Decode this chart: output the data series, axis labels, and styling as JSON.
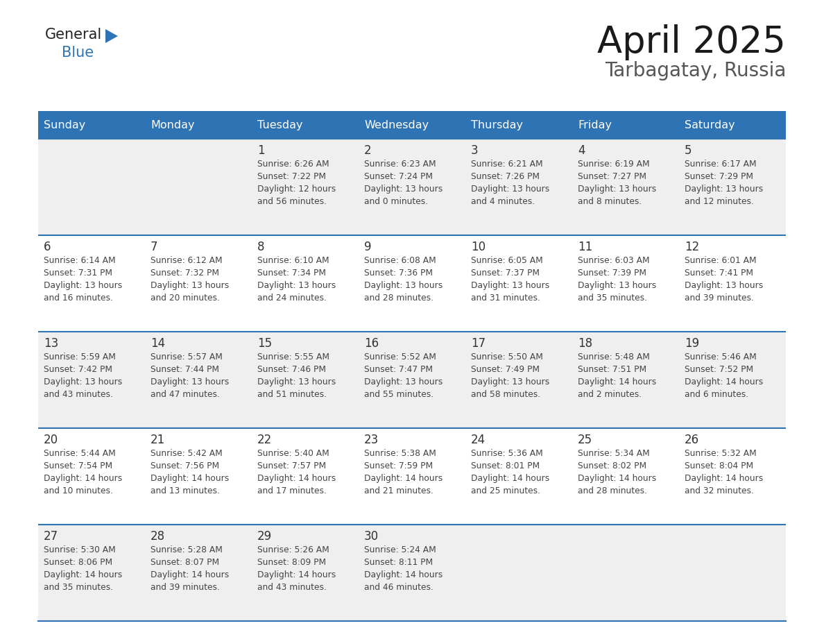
{
  "title": "April 2025",
  "subtitle": "Tarbagatay, Russia",
  "days_of_week": [
    "Sunday",
    "Monday",
    "Tuesday",
    "Wednesday",
    "Thursday",
    "Friday",
    "Saturday"
  ],
  "header_bg": "#2E74B5",
  "header_text_color": "#FFFFFF",
  "cell_bg_light": "#EFEFEF",
  "cell_bg_white": "#FFFFFF",
  "day_number_color": "#333333",
  "cell_text_color": "#444444",
  "line_color": "#2E74B5",
  "title_color": "#1a1a1a",
  "subtitle_color": "#555555",
  "generalblue_dark": "#222222",
  "generalblue_blue": "#2E74B5",
  "calendar": [
    [
      {
        "day": null,
        "info": null
      },
      {
        "day": null,
        "info": null
      },
      {
        "day": 1,
        "info": "Sunrise: 6:26 AM\nSunset: 7:22 PM\nDaylight: 12 hours\nand 56 minutes."
      },
      {
        "day": 2,
        "info": "Sunrise: 6:23 AM\nSunset: 7:24 PM\nDaylight: 13 hours\nand 0 minutes."
      },
      {
        "day": 3,
        "info": "Sunrise: 6:21 AM\nSunset: 7:26 PM\nDaylight: 13 hours\nand 4 minutes."
      },
      {
        "day": 4,
        "info": "Sunrise: 6:19 AM\nSunset: 7:27 PM\nDaylight: 13 hours\nand 8 minutes."
      },
      {
        "day": 5,
        "info": "Sunrise: 6:17 AM\nSunset: 7:29 PM\nDaylight: 13 hours\nand 12 minutes."
      }
    ],
    [
      {
        "day": 6,
        "info": "Sunrise: 6:14 AM\nSunset: 7:31 PM\nDaylight: 13 hours\nand 16 minutes."
      },
      {
        "day": 7,
        "info": "Sunrise: 6:12 AM\nSunset: 7:32 PM\nDaylight: 13 hours\nand 20 minutes."
      },
      {
        "day": 8,
        "info": "Sunrise: 6:10 AM\nSunset: 7:34 PM\nDaylight: 13 hours\nand 24 minutes."
      },
      {
        "day": 9,
        "info": "Sunrise: 6:08 AM\nSunset: 7:36 PM\nDaylight: 13 hours\nand 28 minutes."
      },
      {
        "day": 10,
        "info": "Sunrise: 6:05 AM\nSunset: 7:37 PM\nDaylight: 13 hours\nand 31 minutes."
      },
      {
        "day": 11,
        "info": "Sunrise: 6:03 AM\nSunset: 7:39 PM\nDaylight: 13 hours\nand 35 minutes."
      },
      {
        "day": 12,
        "info": "Sunrise: 6:01 AM\nSunset: 7:41 PM\nDaylight: 13 hours\nand 39 minutes."
      }
    ],
    [
      {
        "day": 13,
        "info": "Sunrise: 5:59 AM\nSunset: 7:42 PM\nDaylight: 13 hours\nand 43 minutes."
      },
      {
        "day": 14,
        "info": "Sunrise: 5:57 AM\nSunset: 7:44 PM\nDaylight: 13 hours\nand 47 minutes."
      },
      {
        "day": 15,
        "info": "Sunrise: 5:55 AM\nSunset: 7:46 PM\nDaylight: 13 hours\nand 51 minutes."
      },
      {
        "day": 16,
        "info": "Sunrise: 5:52 AM\nSunset: 7:47 PM\nDaylight: 13 hours\nand 55 minutes."
      },
      {
        "day": 17,
        "info": "Sunrise: 5:50 AM\nSunset: 7:49 PM\nDaylight: 13 hours\nand 58 minutes."
      },
      {
        "day": 18,
        "info": "Sunrise: 5:48 AM\nSunset: 7:51 PM\nDaylight: 14 hours\nand 2 minutes."
      },
      {
        "day": 19,
        "info": "Sunrise: 5:46 AM\nSunset: 7:52 PM\nDaylight: 14 hours\nand 6 minutes."
      }
    ],
    [
      {
        "day": 20,
        "info": "Sunrise: 5:44 AM\nSunset: 7:54 PM\nDaylight: 14 hours\nand 10 minutes."
      },
      {
        "day": 21,
        "info": "Sunrise: 5:42 AM\nSunset: 7:56 PM\nDaylight: 14 hours\nand 13 minutes."
      },
      {
        "day": 22,
        "info": "Sunrise: 5:40 AM\nSunset: 7:57 PM\nDaylight: 14 hours\nand 17 minutes."
      },
      {
        "day": 23,
        "info": "Sunrise: 5:38 AM\nSunset: 7:59 PM\nDaylight: 14 hours\nand 21 minutes."
      },
      {
        "day": 24,
        "info": "Sunrise: 5:36 AM\nSunset: 8:01 PM\nDaylight: 14 hours\nand 25 minutes."
      },
      {
        "day": 25,
        "info": "Sunrise: 5:34 AM\nSunset: 8:02 PM\nDaylight: 14 hours\nand 28 minutes."
      },
      {
        "day": 26,
        "info": "Sunrise: 5:32 AM\nSunset: 8:04 PM\nDaylight: 14 hours\nand 32 minutes."
      }
    ],
    [
      {
        "day": 27,
        "info": "Sunrise: 5:30 AM\nSunset: 8:06 PM\nDaylight: 14 hours\nand 35 minutes."
      },
      {
        "day": 28,
        "info": "Sunrise: 5:28 AM\nSunset: 8:07 PM\nDaylight: 14 hours\nand 39 minutes."
      },
      {
        "day": 29,
        "info": "Sunrise: 5:26 AM\nSunset: 8:09 PM\nDaylight: 14 hours\nand 43 minutes."
      },
      {
        "day": 30,
        "info": "Sunrise: 5:24 AM\nSunset: 8:11 PM\nDaylight: 14 hours\nand 46 minutes."
      },
      {
        "day": null,
        "info": null
      },
      {
        "day": null,
        "info": null
      },
      {
        "day": null,
        "info": null
      }
    ]
  ],
  "row_bg_colors": [
    "#EFEFEF",
    "#FFFFFF",
    "#EFEFEF",
    "#FFFFFF",
    "#EFEFEF"
  ]
}
